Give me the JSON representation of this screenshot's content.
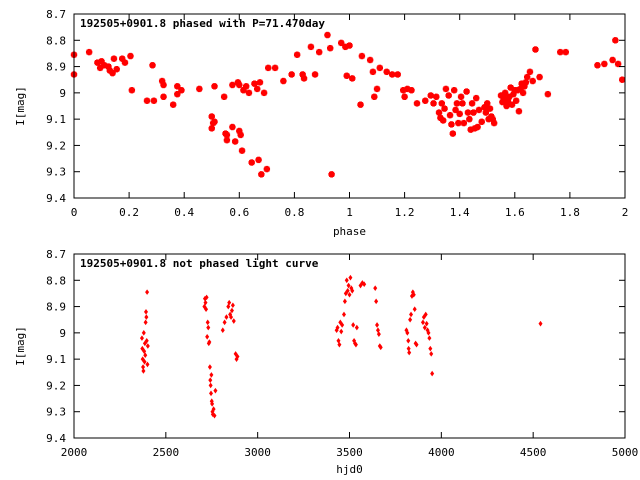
{
  "colors": {
    "points": "#ff0000",
    "frame": "#000000",
    "background": "#ffffff"
  },
  "chart_data": [
    {
      "type": "scatter",
      "title": "192505+0901.8 phased with P=71.470day",
      "xlabel": "phase",
      "ylabel": "I[mag]",
      "xlim": [
        0,
        2
      ],
      "ylim": [
        9.4,
        8.7
      ],
      "y_inverted": true,
      "grid": false,
      "marker": "cross",
      "xticks": [
        0,
        0.2,
        0.4,
        0.6,
        0.8,
        1,
        1.2,
        1.4,
        1.6,
        1.8,
        2
      ],
      "xtick_labels": [
        "0",
        "0.2",
        "0.4",
        "0.6",
        "0.8",
        "1",
        "1.2",
        "1.4",
        "1.6",
        "1.8",
        "2"
      ],
      "yticks": [
        8.7,
        8.8,
        8.9,
        9,
        9.1,
        9.2,
        9.3,
        9.4
      ],
      "ytick_labels": [
        "8.7",
        "8.8",
        "8.9",
        "9",
        "9.1",
        "9.2",
        "9.3",
        "9.4"
      ],
      "points": [
        [
          0.0,
          8.855
        ],
        [
          0.0,
          8.93
        ],
        [
          0.055,
          8.845
        ],
        [
          0.085,
          8.885
        ],
        [
          0.095,
          8.905
        ],
        [
          0.1,
          8.88
        ],
        [
          0.11,
          8.895
        ],
        [
          0.125,
          8.9
        ],
        [
          0.13,
          8.915
        ],
        [
          0.14,
          8.925
        ],
        [
          0.145,
          8.87
        ],
        [
          0.155,
          8.91
        ],
        [
          0.175,
          8.87
        ],
        [
          0.185,
          8.885
        ],
        [
          0.205,
          8.86
        ],
        [
          0.21,
          8.99
        ],
        [
          0.265,
          9.03
        ],
        [
          0.285,
          8.895
        ],
        [
          0.29,
          9.03
        ],
        [
          0.32,
          8.955
        ],
        [
          0.325,
          8.97
        ],
        [
          0.325,
          9.015
        ],
        [
          0.36,
          9.045
        ],
        [
          0.375,
          8.975
        ],
        [
          0.375,
          9.005
        ],
        [
          0.39,
          8.99
        ],
        [
          0.455,
          8.985
        ],
        [
          0.5,
          9.09
        ],
        [
          0.5,
          9.135
        ],
        [
          0.505,
          9.115
        ],
        [
          0.51,
          8.975
        ],
        [
          0.51,
          9.11
        ],
        [
          0.545,
          9.015
        ],
        [
          0.55,
          9.155
        ],
        [
          0.555,
          9.16
        ],
        [
          0.555,
          9.18
        ],
        [
          0.575,
          9.13
        ],
        [
          0.575,
          8.97
        ],
        [
          0.585,
          9.185
        ],
        [
          0.595,
          8.96
        ],
        [
          0.6,
          9.145
        ],
        [
          0.6,
          8.97
        ],
        [
          0.605,
          9.16
        ],
        [
          0.61,
          9.22
        ],
        [
          0.615,
          8.99
        ],
        [
          0.625,
          8.975
        ],
        [
          0.635,
          9.0
        ],
        [
          0.645,
          9.265
        ],
        [
          0.655,
          8.965
        ],
        [
          0.665,
          8.985
        ],
        [
          0.67,
          9.255
        ],
        [
          0.675,
          8.96
        ],
        [
          0.68,
          9.31
        ],
        [
          0.69,
          9.0
        ],
        [
          0.7,
          9.29
        ],
        [
          0.705,
          8.905
        ],
        [
          0.73,
          8.905
        ],
        [
          0.76,
          8.955
        ],
        [
          0.79,
          8.93
        ],
        [
          0.81,
          8.855
        ],
        [
          0.83,
          8.93
        ],
        [
          0.835,
          8.945
        ],
        [
          0.86,
          8.825
        ],
        [
          0.875,
          8.93
        ],
        [
          0.89,
          8.845
        ],
        [
          0.92,
          8.78
        ],
        [
          0.93,
          8.83
        ],
        [
          0.935,
          9.31
        ],
        [
          0.97,
          8.81
        ],
        [
          0.985,
          8.825
        ],
        [
          0.99,
          8.935
        ],
        [
          1.0,
          8.82
        ],
        [
          1.01,
          8.945
        ],
        [
          1.04,
          9.045
        ],
        [
          1.045,
          8.86
        ],
        [
          1.075,
          8.875
        ],
        [
          1.085,
          8.92
        ],
        [
          1.09,
          9.015
        ],
        [
          1.1,
          8.985
        ],
        [
          1.11,
          8.905
        ],
        [
          1.135,
          8.92
        ],
        [
          1.155,
          8.93
        ],
        [
          1.175,
          8.93
        ],
        [
          1.195,
          8.99
        ],
        [
          1.2,
          9.015
        ],
        [
          1.21,
          8.985
        ],
        [
          1.225,
          8.99
        ],
        [
          1.245,
          9.04
        ],
        [
          1.275,
          9.03
        ],
        [
          1.295,
          9.01
        ],
        [
          1.305,
          9.04
        ],
        [
          1.315,
          9.015
        ],
        [
          1.325,
          9.075
        ],
        [
          1.33,
          9.095
        ],
        [
          1.335,
          9.04
        ],
        [
          1.34,
          9.105
        ],
        [
          1.345,
          9.06
        ],
        [
          1.35,
          8.985
        ],
        [
          1.36,
          9.01
        ],
        [
          1.365,
          9.085
        ],
        [
          1.37,
          9.12
        ],
        [
          1.375,
          9.155
        ],
        [
          1.38,
          8.99
        ],
        [
          1.385,
          9.065
        ],
        [
          1.39,
          9.04
        ],
        [
          1.395,
          9.115
        ],
        [
          1.4,
          9.08
        ],
        [
          1.405,
          9.015
        ],
        [
          1.41,
          9.04
        ],
        [
          1.415,
          9.115
        ],
        [
          1.425,
          8.995
        ],
        [
          1.43,
          9.075
        ],
        [
          1.435,
          9.1
        ],
        [
          1.44,
          9.14
        ],
        [
          1.445,
          9.04
        ],
        [
          1.45,
          9.075
        ],
        [
          1.455,
          9.135
        ],
        [
          1.46,
          9.02
        ],
        [
          1.465,
          9.13
        ],
        [
          1.47,
          9.065
        ],
        [
          1.48,
          9.11
        ],
        [
          1.49,
          9.055
        ],
        [
          1.495,
          9.075
        ],
        [
          1.5,
          9.04
        ],
        [
          1.505,
          9.1
        ],
        [
          1.51,
          9.06
        ],
        [
          1.515,
          9.09
        ],
        [
          1.52,
          9.1
        ],
        [
          1.525,
          9.115
        ],
        [
          1.55,
          9.01
        ],
        [
          1.555,
          9.035
        ],
        [
          1.56,
          9.02
        ],
        [
          1.565,
          9.0
        ],
        [
          1.57,
          9.05
        ],
        [
          1.575,
          9.03
        ],
        [
          1.58,
          9.015
        ],
        [
          1.585,
          8.98
        ],
        [
          1.59,
          9.045
        ],
        [
          1.595,
          9.005
        ],
        [
          1.6,
          8.99
        ],
        [
          1.605,
          9.03
        ],
        [
          1.61,
          8.99
        ],
        [
          1.615,
          9.07
        ],
        [
          1.62,
          8.985
        ],
        [
          1.625,
          8.965
        ],
        [
          1.63,
          9.0
        ],
        [
          1.635,
          8.975
        ],
        [
          1.64,
          8.96
        ],
        [
          1.645,
          8.94
        ],
        [
          1.655,
          8.92
        ],
        [
          1.665,
          8.955
        ],
        [
          1.675,
          8.835
        ],
        [
          1.69,
          8.94
        ],
        [
          1.72,
          9.005
        ],
        [
          1.765,
          8.845
        ],
        [
          1.785,
          8.845
        ],
        [
          1.9,
          8.895
        ],
        [
          1.925,
          8.89
        ],
        [
          1.955,
          8.875
        ],
        [
          1.965,
          8.8
        ],
        [
          1.975,
          8.89
        ],
        [
          1.99,
          8.95
        ]
      ]
    },
    {
      "type": "scatter",
      "title": "192505+0901.8 not phased light curve",
      "xlabel": "hjd0",
      "ylabel": "I[mag]",
      "xlim": [
        2000,
        5000
      ],
      "ylim": [
        9.4,
        8.7
      ],
      "y_inverted": true,
      "grid": false,
      "marker": "diamond",
      "xticks": [
        2000,
        2500,
        3000,
        3500,
        4000,
        4500,
        5000
      ],
      "xtick_labels": [
        "2000",
        "2500",
        "3000",
        "3500",
        "4000",
        "4500",
        "5000"
      ],
      "yticks": [
        8.7,
        8.8,
        8.9,
        9,
        9.1,
        9.2,
        9.3,
        9.4
      ],
      "ytick_labels": [
        "8.7",
        "8.8",
        "8.9",
        "9",
        "9.1",
        "9.2",
        "9.3",
        "9.4"
      ],
      "points": [
        [
          2370,
          9.02
        ],
        [
          2372,
          9.06
        ],
        [
          2374,
          9.1
        ],
        [
          2376,
          9.13
        ],
        [
          2378,
          9.145
        ],
        [
          2380,
          9.0
        ],
        [
          2382,
          9.07
        ],
        [
          2384,
          9.11
        ],
        [
          2386,
          9.04
        ],
        [
          2388,
          9.085
        ],
        [
          2390,
          8.96
        ],
        [
          2392,
          8.92
        ],
        [
          2394,
          8.94
        ],
        [
          2396,
          9.03
        ],
        [
          2398,
          8.845
        ],
        [
          2400,
          9.12
        ],
        [
          2402,
          9.05
        ],
        [
          2710,
          8.9
        ],
        [
          2713,
          8.87
        ],
        [
          2716,
          8.885
        ],
        [
          2719,
          8.91
        ],
        [
          2722,
          8.865
        ],
        [
          2725,
          9.015
        ],
        [
          2728,
          8.96
        ],
        [
          2731,
          8.98
        ],
        [
          2734,
          9.04
        ],
        [
          2737,
          9.035
        ],
        [
          2740,
          9.13
        ],
        [
          2742,
          9.18
        ],
        [
          2744,
          9.2
        ],
        [
          2746,
          9.23
        ],
        [
          2748,
          9.16
        ],
        [
          2750,
          9.26
        ],
        [
          2752,
          9.27
        ],
        [
          2754,
          9.3
        ],
        [
          2756,
          9.31
        ],
        [
          2760,
          9.29
        ],
        [
          2765,
          9.315
        ],
        [
          2770,
          9.22
        ],
        [
          2810,
          8.99
        ],
        [
          2820,
          8.96
        ],
        [
          2830,
          8.94
        ],
        [
          2840,
          8.9
        ],
        [
          2845,
          8.885
        ],
        [
          2850,
          8.93
        ],
        [
          2855,
          8.94
        ],
        [
          2860,
          8.915
        ],
        [
          2865,
          8.895
        ],
        [
          2870,
          8.955
        ],
        [
          2880,
          9.08
        ],
        [
          2885,
          9.1
        ],
        [
          2890,
          9.09
        ],
        [
          3430,
          8.99
        ],
        [
          3435,
          8.98
        ],
        [
          3440,
          9.03
        ],
        [
          3445,
          9.045
        ],
        [
          3450,
          8.96
        ],
        [
          3455,
          8.995
        ],
        [
          3460,
          8.97
        ],
        [
          3470,
          8.93
        ],
        [
          3475,
          8.88
        ],
        [
          3480,
          8.85
        ],
        [
          3485,
          8.8
        ],
        [
          3490,
          8.84
        ],
        [
          3495,
          8.82
        ],
        [
          3500,
          8.855
        ],
        [
          3505,
          8.79
        ],
        [
          3510,
          8.83
        ],
        [
          3515,
          8.84
        ],
        [
          3520,
          8.97
        ],
        [
          3525,
          9.03
        ],
        [
          3530,
          9.04
        ],
        [
          3535,
          9.045
        ],
        [
          3540,
          8.98
        ],
        [
          3560,
          8.82
        ],
        [
          3570,
          8.81
        ],
        [
          3580,
          8.815
        ],
        [
          3640,
          8.83
        ],
        [
          3645,
          8.88
        ],
        [
          3650,
          8.97
        ],
        [
          3655,
          8.99
        ],
        [
          3660,
          9.005
        ],
        [
          3665,
          9.05
        ],
        [
          3670,
          9.055
        ],
        [
          3810,
          8.99
        ],
        [
          3815,
          9.0
        ],
        [
          3820,
          9.03
        ],
        [
          3822,
          9.06
        ],
        [
          3825,
          9.075
        ],
        [
          3830,
          8.95
        ],
        [
          3835,
          8.93
        ],
        [
          3840,
          8.86
        ],
        [
          3845,
          8.845
        ],
        [
          3850,
          8.855
        ],
        [
          3855,
          8.91
        ],
        [
          3860,
          9.04
        ],
        [
          3865,
          9.045
        ],
        [
          3900,
          8.96
        ],
        [
          3905,
          8.94
        ],
        [
          3910,
          8.98
        ],
        [
          3915,
          8.93
        ],
        [
          3920,
          8.965
        ],
        [
          3925,
          8.99
        ],
        [
          3930,
          9.0
        ],
        [
          3935,
          9.02
        ],
        [
          3940,
          9.06
        ],
        [
          3945,
          9.08
        ],
        [
          3950,
          9.155
        ],
        [
          4540,
          8.965
        ]
      ]
    }
  ]
}
